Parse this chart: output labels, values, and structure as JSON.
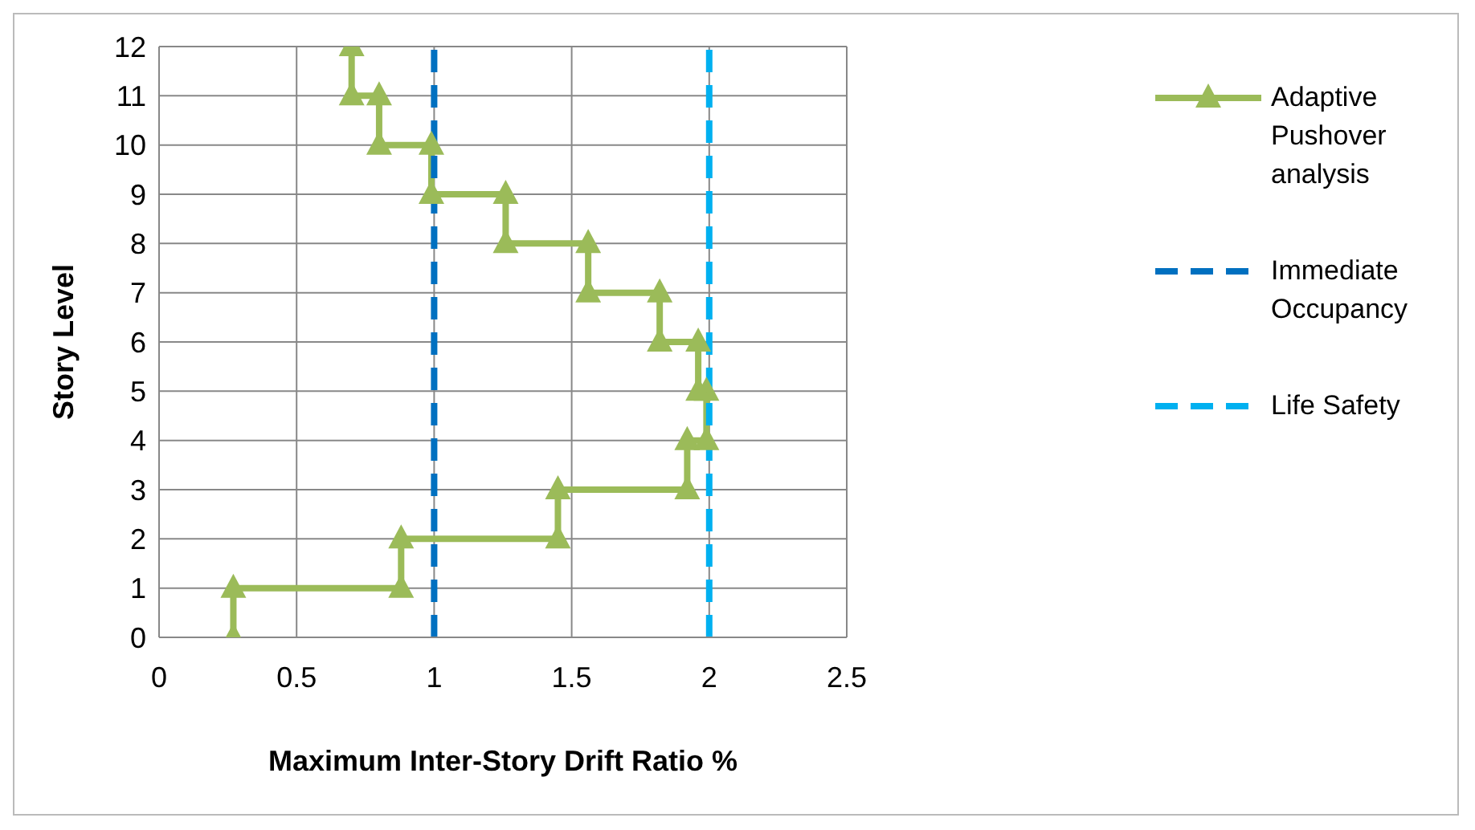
{
  "chart_data": {
    "type": "line",
    "xlabel": "Maximum Inter-Story Drift Ratio %",
    "ylabel": "Story Level",
    "xlim": [
      0,
      2.5
    ],
    "xticks": [
      0,
      0.5,
      1,
      1.5,
      2,
      2.5
    ],
    "ylim": [
      0,
      12
    ],
    "yticks": [
      0,
      1,
      2,
      3,
      4,
      5,
      6,
      7,
      8,
      9,
      10,
      11,
      12
    ],
    "grid": true,
    "legend": "right",
    "series": [
      {
        "name": "Adaptive Pushover analysis",
        "color": "#9bbb59",
        "marker": "triangle",
        "line_style": "solid",
        "x": [
          0.27,
          0.27,
          0.88,
          0.88,
          1.45,
          1.45,
          1.92,
          1.92,
          1.99,
          1.99,
          1.96,
          1.96,
          1.82,
          1.82,
          1.56,
          1.56,
          1.26,
          1.26,
          0.99,
          0.99,
          0.8,
          0.8,
          0.7,
          0.7
        ],
        "values": [
          0,
          1,
          1,
          2,
          2,
          3,
          3,
          4,
          4,
          5,
          5,
          6,
          6,
          7,
          7,
          8,
          8,
          9,
          9,
          10,
          10,
          11,
          11,
          12
        ]
      },
      {
        "name": "Immediate Occupancy",
        "color": "#0070c0",
        "marker": "none",
        "line_style": "dashed",
        "x": [
          1,
          1
        ],
        "values": [
          0,
          12
        ]
      },
      {
        "name": "Life Safety",
        "color": "#00b0f0",
        "marker": "none",
        "line_style": "dashed",
        "x": [
          2,
          2
        ],
        "values": [
          0,
          12
        ]
      }
    ]
  }
}
